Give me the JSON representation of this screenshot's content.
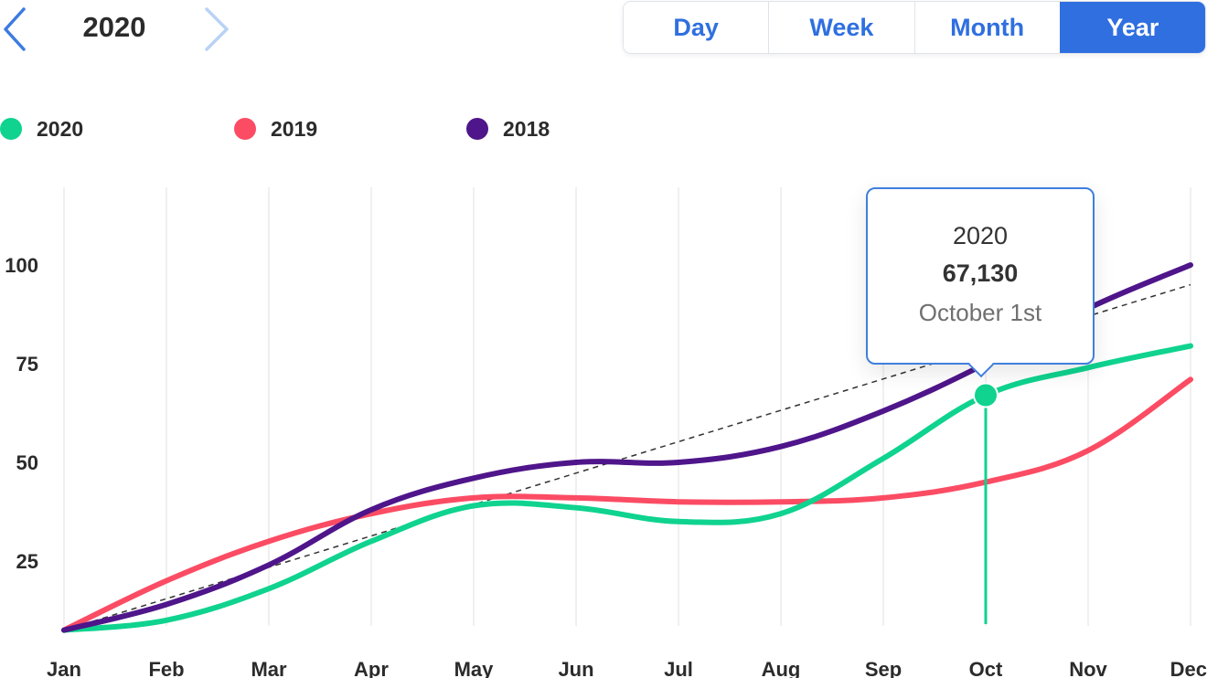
{
  "header": {
    "year": "2020",
    "prev_icon": "chevron-left-icon",
    "next_icon": "chevron-right-icon",
    "prev_color": "#3d7be0",
    "next_color": "#b9d2f5"
  },
  "periods": {
    "day": "Day",
    "week": "Week",
    "month": "Month",
    "year": "Year",
    "active": "year",
    "accent": "#2f6fe0"
  },
  "legend": [
    {
      "label": "2020",
      "color": "#0fd38f"
    },
    {
      "label": "2019",
      "color": "#fb4c64"
    },
    {
      "label": "2018",
      "color": "#4f158a"
    }
  ],
  "tooltip": {
    "series": "2020",
    "value": "67,130",
    "date": "October 1st"
  },
  "chart_data": {
    "type": "line",
    "categories": [
      "Jan",
      "Feb",
      "Mar",
      "Apr",
      "May",
      "Jun",
      "Jul",
      "Aug",
      "Sep",
      "Oct",
      "Nov",
      "Dec"
    ],
    "yticks": [
      25,
      50,
      75,
      100
    ],
    "ylim": [
      0,
      110
    ],
    "grid": "vertical",
    "legend_position": "top-left",
    "series": [
      {
        "name": "2020",
        "color": "#0fd38f",
        "values": [
          7.5,
          10,
          18,
          30,
          39,
          38.5,
          35,
          37,
          51,
          67,
          74,
          79.5
        ]
      },
      {
        "name": "2019",
        "color": "#fb4c64",
        "values": [
          7.5,
          20,
          30,
          37,
          41,
          41,
          40,
          40,
          41,
          45,
          53,
          71
        ]
      },
      {
        "name": "2018",
        "color": "#4f158a",
        "values": [
          7.5,
          14,
          24,
          38,
          46,
          50,
          50,
          54,
          63,
          75,
          89,
          100
        ]
      }
    ],
    "trendline": {
      "start": 7.5,
      "end": 95,
      "color": "#333333"
    },
    "highlight": {
      "series": "2020",
      "category": "Oct",
      "value": 67
    }
  }
}
